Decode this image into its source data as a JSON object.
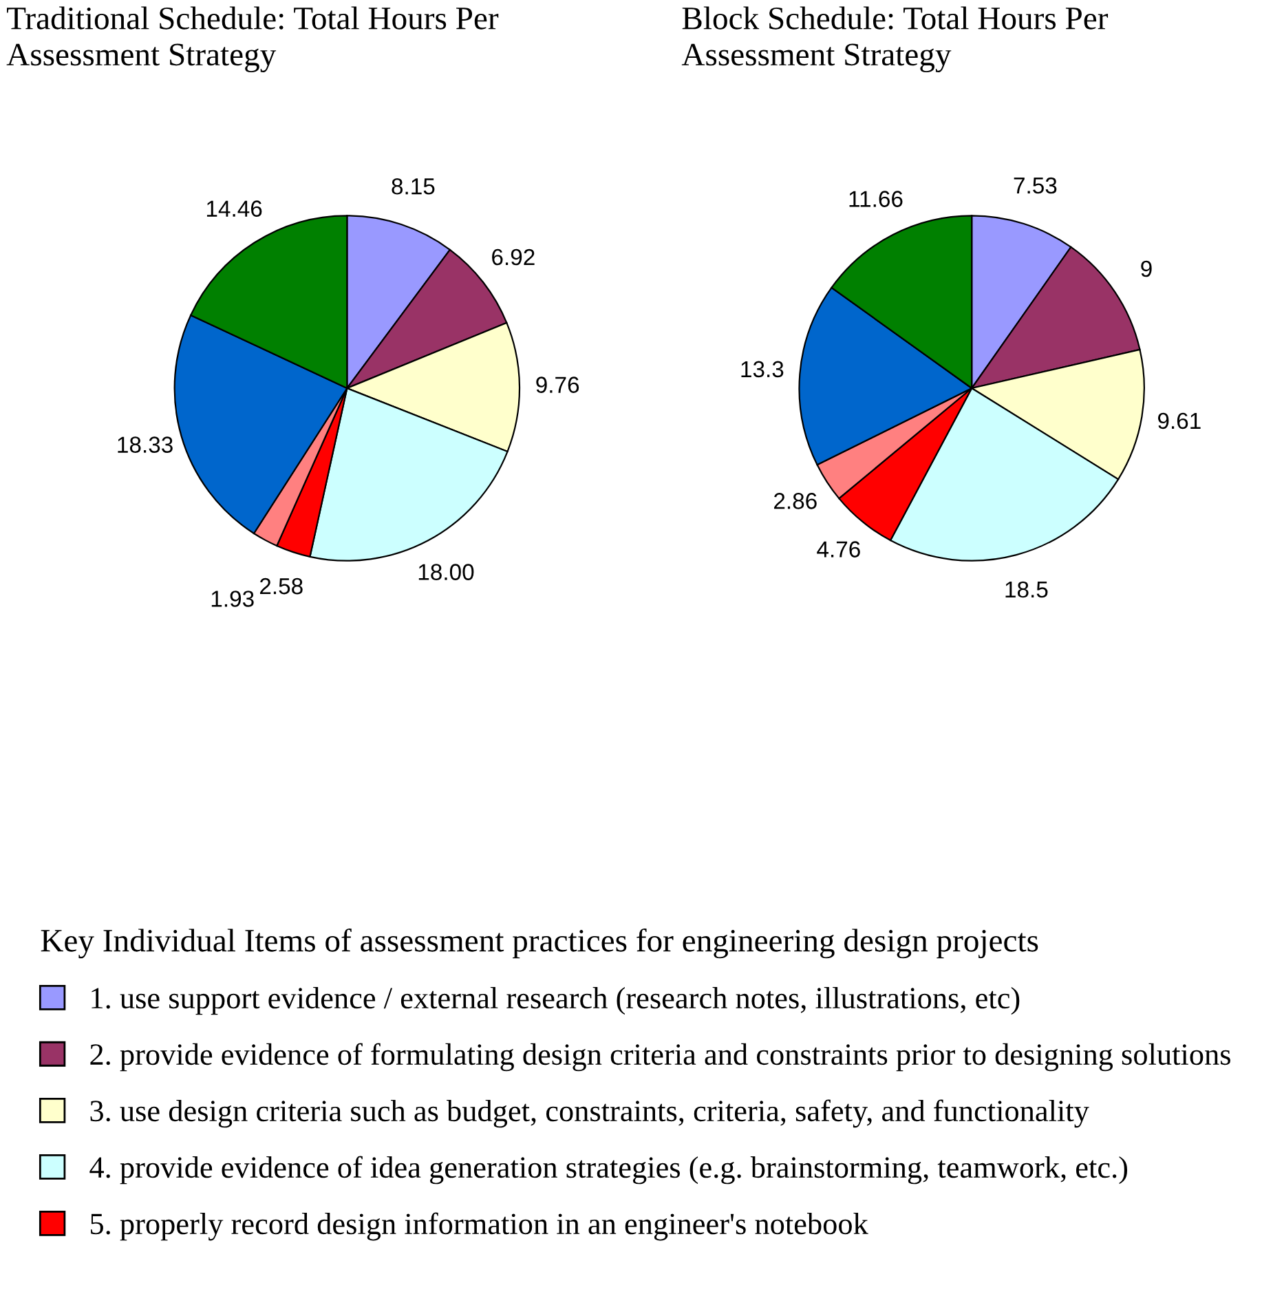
{
  "chart_data": [
    {
      "type": "pie",
      "title": "Traditional Schedule: Total Hours Per Assessment Strategy",
      "categories": [
        "1. use support evidence / external research (research notes, illustrations, etc)",
        "2. provide evidence of formulating design criteria and constraints prior to designing solutions",
        "3. use design criteria such as budget, constraints, criteria, safety, and functionality",
        "4. provide evidence of idea generation strategies (e.g. brainstorming, teamwork, etc.)",
        "5. properly record design information in an engineer's notebook",
        null,
        null,
        null
      ],
      "values": [
        8.15,
        6.92,
        9.76,
        18.0,
        2.58,
        1.93,
        18.33,
        14.46
      ],
      "value_labels": [
        "8.15",
        "6.92",
        "9.76",
        "18.00",
        "2.58",
        "1.93",
        "18.33",
        "14.46"
      ],
      "colors": [
        "#9999ff",
        "#993366",
        "#ffffcc",
        "#ccffff",
        "#ff0000",
        "#ff8080",
        "#0066cc",
        "#008000"
      ],
      "legend": "bottom",
      "legend_title": "Key Individual Items of assessment practices for engineering design projects"
    },
    {
      "type": "pie",
      "title": "Block Schedule: Total Hours Per Assessment Strategy",
      "values": [
        7.53,
        9,
        9.61,
        18.5,
        4.76,
        2.86,
        13.3,
        11.66
      ],
      "value_labels": [
        "7.53",
        "9",
        "9.61",
        "18.5",
        "4.76",
        "2.86",
        "13.3",
        "11.66"
      ],
      "colors": [
        "#9999ff",
        "#993366",
        "#ffffcc",
        "#ccffff",
        "#ff0000",
        "#ff8080",
        "#0066cc",
        "#008000"
      ]
    }
  ]
}
